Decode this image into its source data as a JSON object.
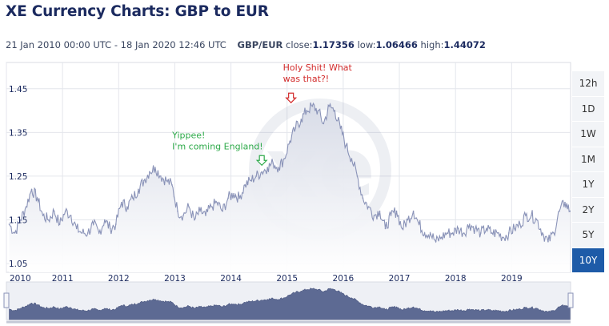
{
  "header": {
    "title": "XE Currency Charts: GBP to EUR",
    "date_range": "21 Jan 2010 00:00 UTC - 18 Jan 2020 12:46 UTC",
    "pair": "GBP/EUR",
    "close_label": "close:",
    "close_value": "1.17356",
    "low_label": "low:",
    "low_value": "1.06466",
    "high_label": "high:",
    "high_value": "1.44072"
  },
  "range_buttons": [
    {
      "label": "12h",
      "active": false
    },
    {
      "label": "1D",
      "active": false
    },
    {
      "label": "1W",
      "active": false
    },
    {
      "label": "1M",
      "active": false
    },
    {
      "label": "1Y",
      "active": false
    },
    {
      "label": "2Y",
      "active": false
    },
    {
      "label": "5Y",
      "active": false
    },
    {
      "label": "10Y",
      "active": true
    }
  ],
  "annotations": [
    {
      "text": [
        "Yippee!",
        "I'm coming England!"
      ],
      "x": 2014.55,
      "y": 1.275,
      "color": "#2eaa4a"
    },
    {
      "text": [
        "Holy Shit! What",
        "was that?!"
      ],
      "x": 2015.07,
      "y": 1.418,
      "color": "#d22b2b"
    }
  ],
  "colors": {
    "line": "#8a93b8",
    "area_top": "#d6dae6",
    "area_bottom": "#ffffff",
    "grid": "#e4e6ec",
    "axis_text": "#1b2a5f",
    "navigator_fill": "#5d6a93",
    "accent": "#1e5ba8"
  },
  "chart_data": {
    "type": "area",
    "title": "XE Currency Charts: GBP to EUR",
    "xlabel": "",
    "ylabel": "",
    "xlim": [
      2010.0,
      2020.05
    ],
    "ylim": [
      1.03,
      1.51
    ],
    "y_ticks": [
      "1.05",
      "1.15",
      "1.25",
      "1.35",
      "1.45"
    ],
    "x_ticks": [
      "2010",
      "2011",
      "2012",
      "2013",
      "2014",
      "2015",
      "2016",
      "2017",
      "2018",
      "2019"
    ],
    "grid": true,
    "series": [
      {
        "x": [
          2010.05,
          2010.15,
          2010.25,
          2010.35,
          2010.45,
          2010.55,
          2010.65,
          2010.75,
          2010.85,
          2010.95,
          2011.05,
          2011.15,
          2011.25,
          2011.35,
          2011.45,
          2011.55,
          2011.65,
          2011.75,
          2011.85,
          2011.95,
          2012.05,
          2012.15,
          2012.25,
          2012.35,
          2012.45,
          2012.55,
          2012.65,
          2012.75,
          2012.85,
          2012.95,
          2013.05,
          2013.15,
          2013.25,
          2013.35,
          2013.45,
          2013.55,
          2013.65,
          2013.75,
          2013.85,
          2013.95,
          2014.05,
          2014.15,
          2014.25,
          2014.35,
          2014.45,
          2014.55,
          2014.65,
          2014.75,
          2014.85,
          2014.95,
          2015.05,
          2015.15,
          2015.25,
          2015.35,
          2015.45,
          2015.55,
          2015.65,
          2015.75,
          2015.85,
          2015.95,
          2016.05,
          2016.15,
          2016.25,
          2016.35,
          2016.45,
          2016.55,
          2016.65,
          2016.75,
          2016.85,
          2016.95,
          2017.05,
          2017.15,
          2017.25,
          2017.35,
          2017.45,
          2017.55,
          2017.65,
          2017.75,
          2017.85,
          2017.95,
          2018.05,
          2018.15,
          2018.25,
          2018.35,
          2018.45,
          2018.55,
          2018.65,
          2018.75,
          2018.85,
          2018.95,
          2019.05,
          2019.15,
          2019.25,
          2019.35,
          2019.45,
          2019.55,
          2019.65,
          2019.75,
          2019.85,
          2019.95,
          2020.04
        ],
        "values": [
          1.14,
          1.12,
          1.15,
          1.18,
          1.22,
          1.2,
          1.16,
          1.15,
          1.17,
          1.14,
          1.17,
          1.16,
          1.13,
          1.12,
          1.12,
          1.14,
          1.12,
          1.15,
          1.13,
          1.14,
          1.19,
          1.18,
          1.2,
          1.22,
          1.24,
          1.26,
          1.27,
          1.25,
          1.24,
          1.23,
          1.17,
          1.16,
          1.18,
          1.15,
          1.17,
          1.16,
          1.18,
          1.19,
          1.17,
          1.2,
          1.21,
          1.2,
          1.23,
          1.24,
          1.25,
          1.26,
          1.27,
          1.28,
          1.27,
          1.29,
          1.33,
          1.36,
          1.38,
          1.4,
          1.41,
          1.4,
          1.37,
          1.41,
          1.4,
          1.36,
          1.32,
          1.29,
          1.25,
          1.2,
          1.18,
          1.16,
          1.17,
          1.13,
          1.16,
          1.17,
          1.13,
          1.15,
          1.17,
          1.14,
          1.12,
          1.12,
          1.1,
          1.11,
          1.12,
          1.12,
          1.13,
          1.12,
          1.14,
          1.13,
          1.12,
          1.13,
          1.12,
          1.12,
          1.11,
          1.12,
          1.13,
          1.14,
          1.16,
          1.16,
          1.15,
          1.12,
          1.1,
          1.12,
          1.17,
          1.19,
          1.17
        ]
      }
    ]
  }
}
